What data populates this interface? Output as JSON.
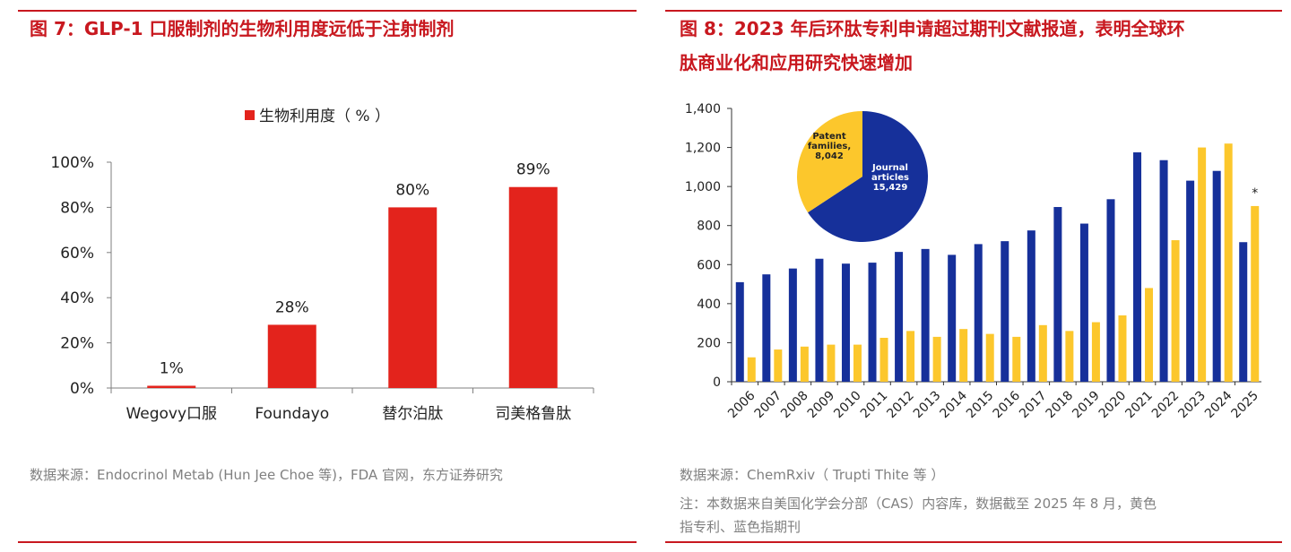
{
  "left": {
    "title": "图 7：GLP-1 口服制剂的生物利用度远低于注射制剂",
    "source": "数据来源：Endocrinol Metab (Hun Jee Choe 等)，FDA 官网，东方证券研究"
  },
  "right": {
    "title_line1": "图 8：2023 年后环肽专利申请超过期刊文献报道，表明全球环",
    "title_line2": "肽商业化和应用研究快速增加",
    "source": "数据来源：ChemRxiv（ Trupti Thite 等 ）",
    "note_line1": "注：本数据来自美国化学会分部（CAS）内容库，数据截至 2025 年 8 月，黄色",
    "note_line2": "指专利、蓝色指期刊"
  },
  "colors": {
    "accent": "#c8181f",
    "bar_red": "#e3231c",
    "journal_blue": "#16309a",
    "patent_yellow": "#fcc72c"
  },
  "chart_data": [
    {
      "type": "bar",
      "legend": "生物利用度（ % ）",
      "legend_position": "top",
      "categories": [
        "Wegovy口服",
        "Foundayo",
        "替尔泊肽",
        "司美格鲁肽"
      ],
      "values": [
        1,
        28,
        80,
        89
      ],
      "data_labels": [
        "1%",
        "28%",
        "80%",
        "89%"
      ],
      "yticks": [
        "0%",
        "20%",
        "40%",
        "60%",
        "80%",
        "100%"
      ],
      "ylim": [
        0,
        100
      ],
      "grid": false
    },
    {
      "type": "bar",
      "categories": [
        "2006",
        "2007",
        "2008",
        "2009",
        "2010",
        "2011",
        "2012",
        "2013",
        "2014",
        "2015",
        "2016",
        "2017",
        "2018",
        "2019",
        "2020",
        "2021",
        "2022",
        "2023",
        "2024",
        "2025"
      ],
      "series": [
        {
          "key": "journal",
          "values": [
            510,
            550,
            580,
            630,
            605,
            610,
            665,
            680,
            650,
            705,
            720,
            775,
            895,
            810,
            935,
            1175,
            1135,
            1030,
            1080,
            715
          ]
        },
        {
          "key": "patent",
          "values": [
            125,
            165,
            180,
            190,
            190,
            225,
            260,
            230,
            270,
            245,
            230,
            290,
            260,
            305,
            340,
            480,
            725,
            1200,
            1220,
            900
          ]
        }
      ],
      "yticks": [
        "0",
        "200",
        "400",
        "600",
        "800",
        "1,000",
        "1,200",
        "1,400"
      ],
      "ylim": [
        0,
        1400
      ],
      "grid": false,
      "annotation": "*",
      "inset_pie": {
        "slices": [
          {
            "label_lines": [
              "Journal",
              "articles",
              "15,429"
            ],
            "value": 15429
          },
          {
            "label_lines": [
              "Patent",
              "families,",
              "8,042"
            ],
            "value": 8042
          }
        ]
      }
    }
  ]
}
